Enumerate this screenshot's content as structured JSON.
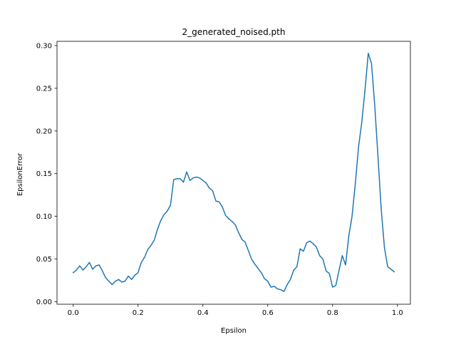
{
  "chart_data": {
    "type": "line",
    "title": "2_generated_noised.pth",
    "xlabel": "Epsilon",
    "ylabel": "EpsilonError",
    "xlim": [
      -0.05,
      1.04
    ],
    "ylim": [
      -0.003,
      0.305
    ],
    "xticks": [
      0.0,
      0.2,
      0.4,
      0.6,
      0.8,
      1.0
    ],
    "xtick_labels": [
      "0.0",
      "0.2",
      "0.4",
      "0.6",
      "0.8",
      "1.0"
    ],
    "yticks": [
      0.0,
      0.05,
      0.1,
      0.15,
      0.2,
      0.25,
      0.3
    ],
    "ytick_labels": [
      "0.00",
      "0.05",
      "0.10",
      "0.15",
      "0.20",
      "0.25",
      "0.30"
    ],
    "grid": false,
    "line_color": "#1f77b4",
    "series": [
      {
        "x": [
          0.0,
          0.01,
          0.02,
          0.03,
          0.04,
          0.05,
          0.06,
          0.07,
          0.08,
          0.09,
          0.1,
          0.11,
          0.12,
          0.13,
          0.14,
          0.15,
          0.16,
          0.17,
          0.18,
          0.19,
          0.2,
          0.21,
          0.22,
          0.23,
          0.24,
          0.25,
          0.26,
          0.27,
          0.28,
          0.29,
          0.3,
          0.31,
          0.32,
          0.33,
          0.34,
          0.35,
          0.36,
          0.37,
          0.38,
          0.39,
          0.4,
          0.41,
          0.42,
          0.43,
          0.44,
          0.45,
          0.46,
          0.47,
          0.48,
          0.49,
          0.5,
          0.51,
          0.52,
          0.53,
          0.54,
          0.55,
          0.56,
          0.57,
          0.58,
          0.59,
          0.6,
          0.61,
          0.62,
          0.63,
          0.64,
          0.65,
          0.66,
          0.67,
          0.68,
          0.69,
          0.7,
          0.71,
          0.72,
          0.73,
          0.74,
          0.75,
          0.76,
          0.77,
          0.78,
          0.79,
          0.8,
          0.81,
          0.82,
          0.83,
          0.84,
          0.85,
          0.86,
          0.87,
          0.88,
          0.89,
          0.9,
          0.91,
          0.92,
          0.93,
          0.94,
          0.95,
          0.96,
          0.97,
          0.98,
          0.99
        ],
        "values": [
          0.034,
          0.037,
          0.042,
          0.037,
          0.041,
          0.046,
          0.038,
          0.042,
          0.043,
          0.036,
          0.028,
          0.024,
          0.02,
          0.024,
          0.026,
          0.023,
          0.024,
          0.03,
          0.026,
          0.031,
          0.034,
          0.046,
          0.052,
          0.061,
          0.066,
          0.072,
          0.085,
          0.095,
          0.102,
          0.106,
          0.113,
          0.143,
          0.144,
          0.144,
          0.14,
          0.152,
          0.142,
          0.145,
          0.146,
          0.145,
          0.142,
          0.139,
          0.133,
          0.13,
          0.118,
          0.117,
          0.111,
          0.101,
          0.097,
          0.094,
          0.09,
          0.081,
          0.073,
          0.07,
          0.06,
          0.05,
          0.044,
          0.039,
          0.034,
          0.027,
          0.024,
          0.017,
          0.018,
          0.015,
          0.014,
          0.012,
          0.02,
          0.026,
          0.037,
          0.041,
          0.062,
          0.059,
          0.069,
          0.071,
          0.068,
          0.064,
          0.054,
          0.05,
          0.036,
          0.033,
          0.017,
          0.019,
          0.037,
          0.054,
          0.043,
          0.077,
          0.1,
          0.138,
          0.181,
          0.21,
          0.248,
          0.291,
          0.279,
          0.23,
          0.17,
          0.108,
          0.063,
          0.041,
          0.038,
          0.035
        ]
      }
    ]
  }
}
